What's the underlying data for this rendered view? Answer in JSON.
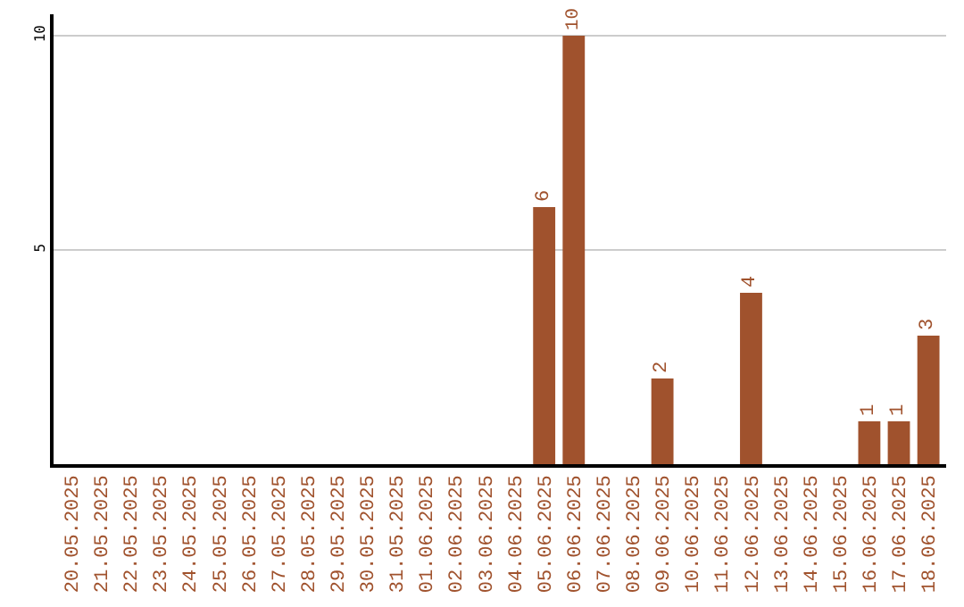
{
  "chart_data": {
    "type": "bar",
    "categories": [
      "20.05.2025",
      "21.05.2025",
      "22.05.2025",
      "23.05.2025",
      "24.05.2025",
      "25.05.2025",
      "26.05.2025",
      "27.05.2025",
      "28.05.2025",
      "29.05.2025",
      "30.05.2025",
      "31.05.2025",
      "01.06.2025",
      "02.06.2025",
      "03.06.2025",
      "04.06.2025",
      "05.06.2025",
      "06.06.2025",
      "07.06.2025",
      "08.06.2025",
      "09.06.2025",
      "10.06.2025",
      "11.06.2025",
      "12.06.2025",
      "13.06.2025",
      "14.06.2025",
      "15.06.2025",
      "16.06.2025",
      "17.06.2025",
      "18.06.2025"
    ],
    "values": [
      0,
      0,
      0,
      0,
      0,
      0,
      0,
      0,
      0,
      0,
      0,
      0,
      0,
      0,
      0,
      0,
      6,
      10,
      0,
      0,
      2,
      0,
      0,
      4,
      0,
      0,
      0,
      1,
      1,
      3
    ],
    "value_labels": [
      null,
      null,
      null,
      null,
      null,
      null,
      null,
      null,
      null,
      null,
      null,
      null,
      null,
      null,
      null,
      null,
      "6",
      "10",
      null,
      null,
      "2",
      null,
      null,
      "4",
      null,
      null,
      null,
      "1",
      "1",
      "3"
    ],
    "color": "#a0522d",
    "ylim": [
      0,
      10.5
    ],
    "yticks": [
      5,
      10
    ],
    "grid": "y",
    "legend": false
  }
}
